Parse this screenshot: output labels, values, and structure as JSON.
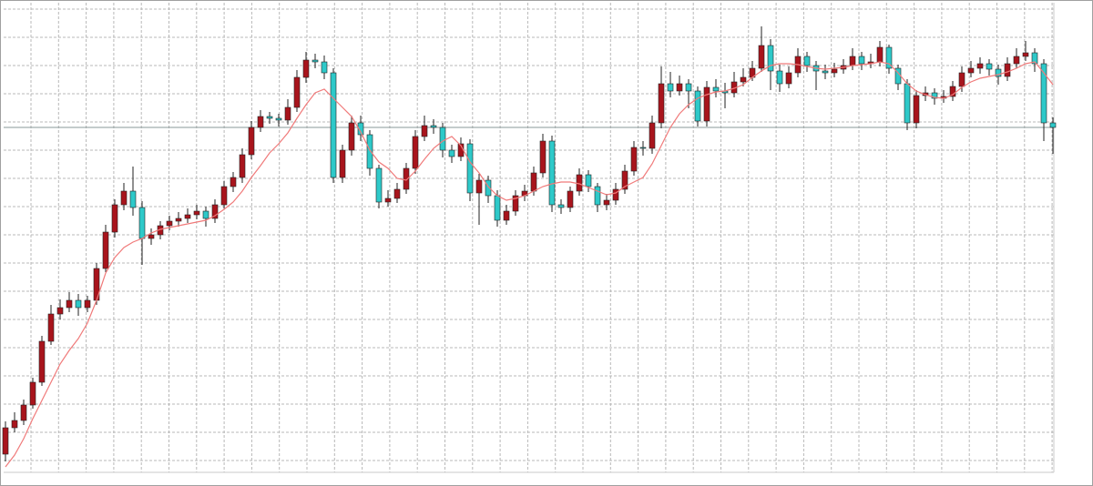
{
  "chart_data": {
    "type": "candlestick",
    "open": [
      20,
      49,
      57,
      74,
      99,
      144,
      174,
      181,
      189,
      181,
      189,
      224,
      264,
      294,
      309,
      291,
      257,
      261,
      271,
      276,
      279,
      283,
      287,
      279,
      294,
      314,
      324,
      349,
      379,
      391,
      389,
      387,
      401,
      434,
      453,
      451,
      439,
      324,
      354,
      384,
      371,
      334,
      297,
      301,
      311,
      334,
      369,
      381,
      379,
      354,
      347,
      361,
      307,
      321,
      304,
      277,
      287,
      304,
      309,
      329,
      364,
      294,
      291,
      309,
      327,
      314,
      294,
      299,
      311,
      331,
      357,
      356,
      384,
      427,
      419,
      427,
      419,
      386,
      423,
      419,
      417,
      429,
      434,
      444,
      469,
      441,
      427,
      439,
      457,
      447,
      441,
      439,
      443,
      447,
      457,
      449,
      451,
      467,
      444,
      427,
      384,
      414,
      417,
      411,
      413,
      424,
      439,
      444,
      449,
      443,
      435,
      449,
      457,
      461,
      449,
      384
    ],
    "high": [
      56,
      66,
      80,
      104,
      150,
      184,
      190,
      198,
      196,
      194,
      230,
      272,
      300,
      318,
      336,
      298,
      268,
      276,
      282,
      286,
      290,
      294,
      292,
      300,
      320,
      330,
      356,
      386,
      398,
      396,
      394,
      410,
      442,
      462,
      460,
      458,
      444,
      360,
      392,
      392,
      376,
      338,
      310,
      318,
      340,
      376,
      392,
      388,
      384,
      360,
      368,
      366,
      328,
      326,
      310,
      294,
      310,
      316,
      336,
      372,
      370,
      300,
      314,
      334,
      332,
      318,
      306,
      318,
      338,
      364,
      364,
      392,
      446,
      440,
      436,
      432,
      424,
      430,
      432,
      428,
      440,
      444,
      452,
      490,
      476,
      448,
      446,
      466,
      462,
      452,
      448,
      450,
      454,
      466,
      462,
      460,
      474,
      470,
      448,
      432,
      420,
      424,
      422,
      420,
      430,
      446,
      452,
      456,
      454,
      448,
      456,
      466,
      474,
      466,
      454,
      390
    ],
    "low": [
      12,
      44,
      52,
      70,
      95,
      140,
      168,
      176,
      172,
      176,
      184,
      220,
      258,
      288,
      282,
      228,
      250,
      256,
      266,
      270,
      274,
      278,
      270,
      274,
      290,
      308,
      318,
      344,
      374,
      383,
      380,
      382,
      396,
      428,
      444,
      432,
      318,
      318,
      348,
      364,
      326,
      290,
      292,
      296,
      306,
      328,
      364,
      372,
      346,
      340,
      342,
      298,
      272,
      296,
      270,
      272,
      282,
      298,
      304,
      324,
      286,
      284,
      286,
      304,
      308,
      286,
      288,
      294,
      306,
      326,
      348,
      350,
      378,
      412,
      414,
      400,
      380,
      380,
      412,
      400,
      412,
      424,
      430,
      440,
      420,
      418,
      422,
      434,
      440,
      420,
      432,
      434,
      438,
      442,
      442,
      444,
      446,
      438,
      420,
      376,
      378,
      408,
      404,
      406,
      408,
      418,
      434,
      438,
      436,
      426,
      430,
      444,
      452,
      440,
      364,
      350
    ],
    "close": [
      49,
      57,
      74,
      99,
      144,
      174,
      181,
      189,
      181,
      189,
      224,
      264,
      294,
      309,
      291,
      257,
      261,
      271,
      276,
      279,
      283,
      287,
      279,
      294,
      314,
      324,
      349,
      379,
      391,
      389,
      387,
      401,
      434,
      453,
      451,
      439,
      324,
      354,
      384,
      371,
      334,
      297,
      301,
      311,
      334,
      369,
      381,
      379,
      354,
      347,
      361,
      307,
      321,
      304,
      277,
      287,
      304,
      309,
      329,
      364,
      294,
      291,
      309,
      327,
      314,
      294,
      299,
      311,
      331,
      357,
      356,
      384,
      427,
      419,
      427,
      419,
      386,
      423,
      419,
      417,
      429,
      434,
      444,
      469,
      441,
      427,
      439,
      457,
      447,
      441,
      439,
      443,
      447,
      457,
      449,
      451,
      467,
      444,
      427,
      384,
      414,
      417,
      411,
      413,
      424,
      439,
      444,
      449,
      443,
      435,
      449,
      457,
      461,
      449,
      384,
      379
    ],
    "up_color": "#a8141c",
    "down_color": "#2ec9c9",
    "moving_average": {
      "color": "#f07a7a",
      "values": [
        6,
        19,
        37,
        59,
        79,
        99,
        119,
        134,
        147,
        164,
        189,
        219,
        236,
        247,
        253,
        257,
        263,
        267,
        269,
        271,
        273,
        275,
        277,
        282,
        289,
        297,
        309,
        324,
        337,
        351,
        361,
        373,
        389,
        404,
        417,
        421,
        411,
        401,
        391,
        374,
        354,
        341,
        334,
        323,
        321,
        331,
        344,
        356,
        364,
        369,
        359,
        341,
        329,
        314,
        304,
        299,
        301,
        304,
        309,
        314,
        317,
        319,
        319,
        317,
        313,
        309,
        305,
        307,
        314,
        319,
        324,
        339,
        359,
        379,
        394,
        404,
        411,
        415,
        418,
        419,
        422,
        426,
        434,
        441,
        447,
        449,
        449,
        448,
        446,
        444,
        443,
        444,
        445,
        447,
        448,
        449,
        451,
        449,
        439,
        427,
        419,
        415,
        412,
        411,
        415,
        423,
        429,
        433,
        435,
        437,
        440,
        444,
        449,
        451,
        439,
        426
      ]
    },
    "ylim": [
      0,
      516
    ],
    "grid": true
  }
}
